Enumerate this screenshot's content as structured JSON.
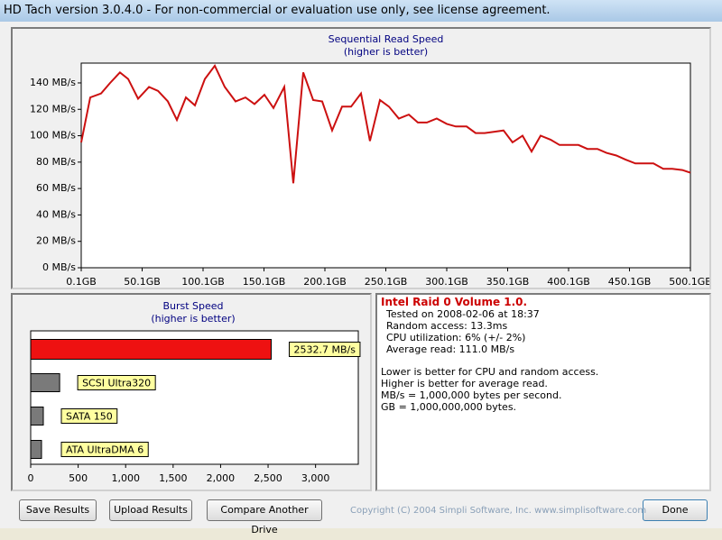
{
  "window": {
    "title": "HD Tach version 3.0.4.0  - For non-commercial or evaluation use only, see license agreement."
  },
  "chart_data": [
    {
      "type": "line",
      "title": "Sequential Read Speed",
      "subtitle": "(higher is better)",
      "color": "#cc1010",
      "x": [
        0.1,
        7.5,
        16.4,
        23.8,
        31.9,
        38.6,
        46.8,
        55.7,
        63.1,
        71.2,
        78.6,
        86.0,
        93.4,
        101.6,
        109.7,
        117.9,
        126.8,
        134.9,
        142.3,
        150.5,
        157.9,
        166.8,
        174.2,
        182.3,
        190.5,
        197.9,
        206.0,
        214.2,
        221.6,
        229.7,
        237.1,
        245.3,
        252.7,
        260.8,
        269.0,
        276.4,
        283.8,
        291.9,
        300.1,
        307.5,
        316.4,
        323.8,
        331.2,
        338.6,
        346.7,
        354.1,
        362.3,
        369.7,
        377.1,
        385.3,
        392.7,
        400.1,
        408.2,
        415.6,
        423.8,
        431.2,
        439.3,
        446.7,
        454.9,
        462.3,
        469.7,
        477.8,
        485.2,
        493.4,
        500.1
      ],
      "values": [
        95,
        129,
        132,
        140,
        148,
        143,
        128,
        137,
        134,
        126,
        112,
        129,
        123,
        143,
        153,
        137,
        126,
        129,
        124,
        131,
        121,
        137,
        64,
        148,
        127,
        126,
        104,
        122,
        122,
        132,
        96,
        127,
        122,
        113,
        116,
        110,
        110,
        113,
        109,
        107,
        107,
        102,
        102,
        103,
        104,
        95,
        100,
        88,
        100,
        97,
        93,
        93,
        93,
        90,
        90,
        87,
        85,
        82,
        79,
        79,
        79,
        75,
        75,
        74,
        72
      ],
      "xlim": [
        0.1,
        500.1
      ],
      "xticks": [
        {
          "value": 0.1,
          "label": "0.1GB"
        },
        {
          "value": 50.1,
          "label": "50.1GB"
        },
        {
          "value": 100.1,
          "label": "100.1GB"
        },
        {
          "value": 150.1,
          "label": "150.1GB"
        },
        {
          "value": 200.1,
          "label": "200.1GB"
        },
        {
          "value": 250.1,
          "label": "250.1GB"
        },
        {
          "value": 300.1,
          "label": "300.1GB"
        },
        {
          "value": 350.1,
          "label": "350.1GB"
        },
        {
          "value": 400.1,
          "label": "400.1GB"
        },
        {
          "value": 450.1,
          "label": "450.1GB"
        },
        {
          "value": 500.1,
          "label": "500.1GB"
        }
      ],
      "ylim": [
        0,
        155
      ],
      "yticks": [
        {
          "value": 0,
          "label": "0 MB/s"
        },
        {
          "value": 20,
          "label": "20 MB/s"
        },
        {
          "value": 40,
          "label": "40 MB/s"
        },
        {
          "value": 60,
          "label": "60 MB/s"
        },
        {
          "value": 80,
          "label": "80 MB/s"
        },
        {
          "value": 100,
          "label": "100 MB/s"
        },
        {
          "value": 120,
          "label": "120 MB/s"
        },
        {
          "value": 140,
          "label": "140 MB/s"
        }
      ]
    },
    {
      "type": "hbar",
      "title": "Burst Speed",
      "subtitle": "(higher is better)",
      "categories": [
        null,
        "SCSI Ultra320",
        "SATA 150",
        "ATA UltraDMA 6"
      ],
      "values": [
        2532.7,
        305,
        133,
        114
      ],
      "value_labels": [
        "2532.7 MB/s",
        null,
        null,
        null
      ],
      "colors": [
        "#ee1111",
        "#7a7a7a",
        "#7a7a7a",
        "#7a7a7a"
      ],
      "xlim": [
        0,
        3450
      ],
      "xticks": [
        0,
        500,
        {
          "value": 1000,
          "label": "1,000"
        },
        {
          "value": 1500,
          "label": "1,500"
        },
        {
          "value": 2000,
          "label": "2,000"
        },
        {
          "value": 2500,
          "label": "2,500"
        },
        {
          "value": 3000,
          "label": "3,000"
        }
      ]
    }
  ],
  "info": {
    "title": "Intel Raid 0 Volume 1.0.",
    "details": [
      "Tested on 2008-02-06 at 18:37",
      "Random access: 13.3ms",
      "CPU utilization: 6% (+/- 2%)",
      "Average read: 111.0 MB/s"
    ],
    "notes": [
      "Lower is better for CPU and random access.",
      "Higher is better for average read.",
      "MB/s = 1,000,000 bytes per second.",
      "GB = 1,000,000,000 bytes."
    ]
  },
  "buttons": [
    "Save Results",
    "Upload Results",
    "Compare Another Drive",
    "Done"
  ],
  "copyright": "Copyright (C) 2004 Simpli Software, Inc. www.simplisoftware.com"
}
